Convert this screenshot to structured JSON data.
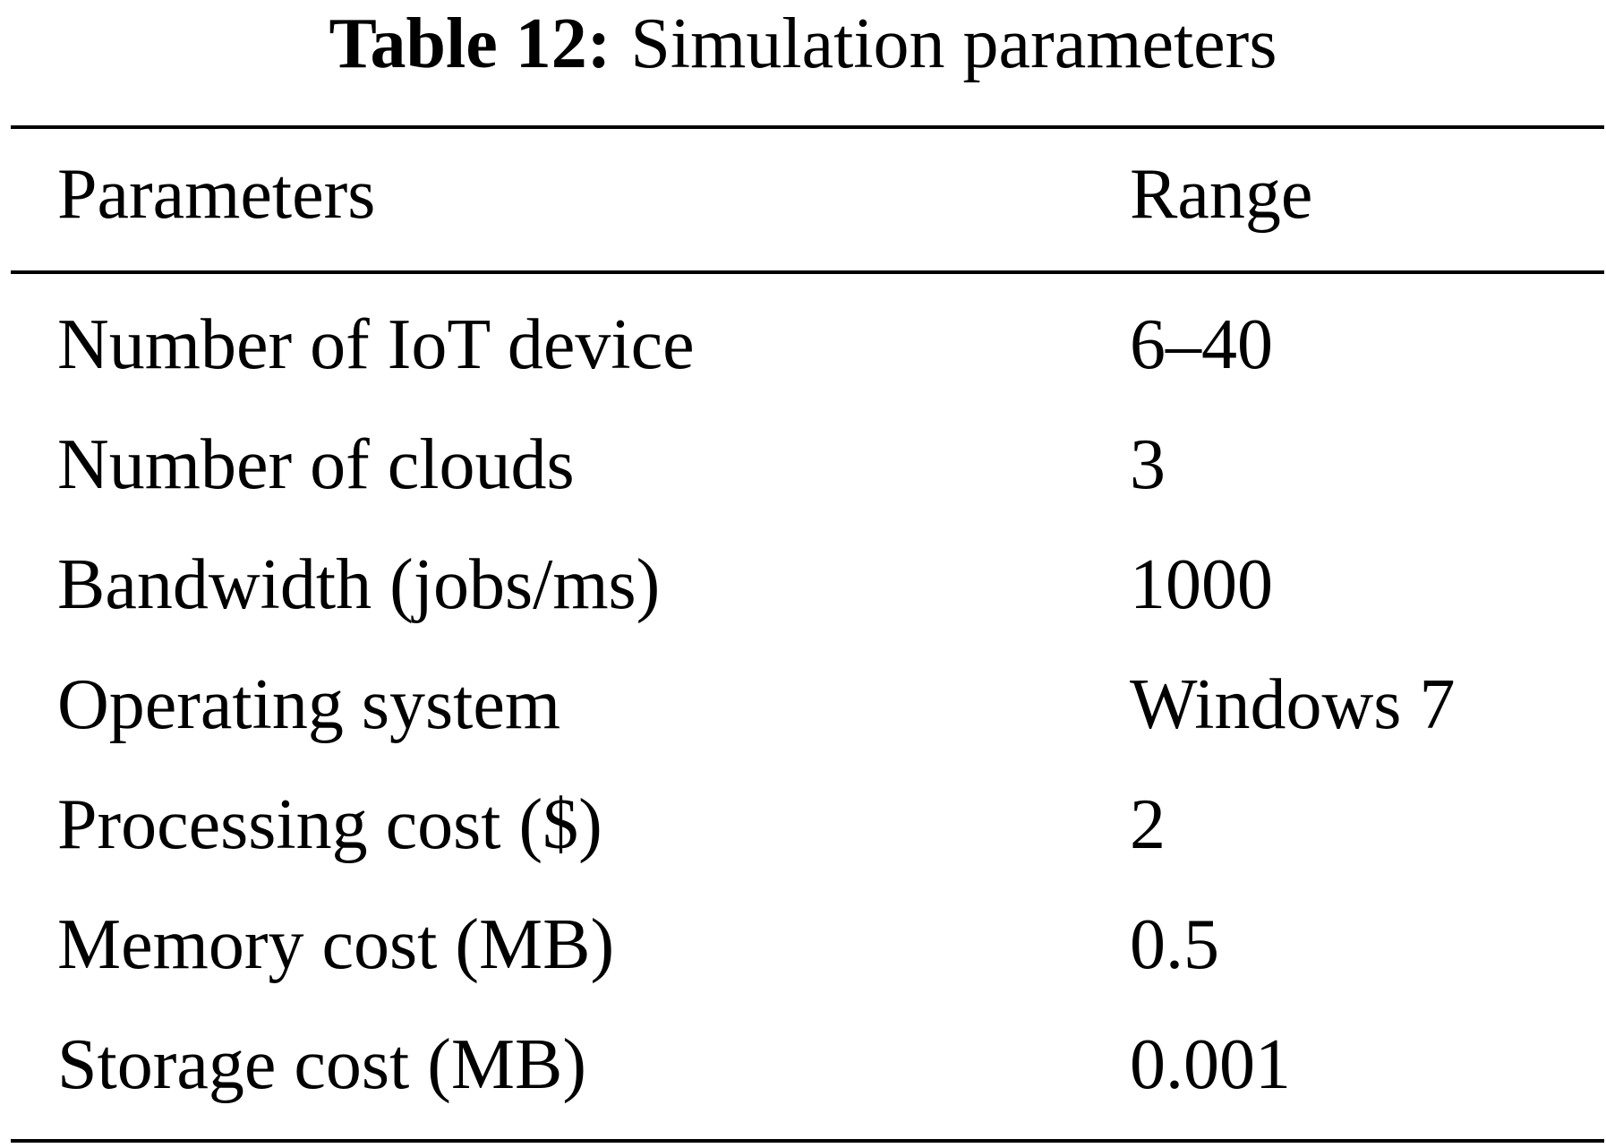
{
  "table": {
    "caption_label": "Table 12:",
    "caption_text": "Simulation parameters",
    "headers": {
      "parameter": "Parameters",
      "range": "Range"
    },
    "rows": [
      {
        "parameter": "Number of IoT device",
        "range": "6–40"
      },
      {
        "parameter": "Number of clouds",
        "range": "3"
      },
      {
        "parameter": "Bandwidth (jobs/ms)",
        "range": "1000"
      },
      {
        "parameter": "Operating system",
        "range": "Windows 7"
      },
      {
        "parameter": "Processing cost ($)",
        "range": "2"
      },
      {
        "parameter": "Memory cost (MB)",
        "range": "0.5"
      },
      {
        "parameter": "Storage cost (MB)",
        "range": "0.001"
      }
    ]
  }
}
